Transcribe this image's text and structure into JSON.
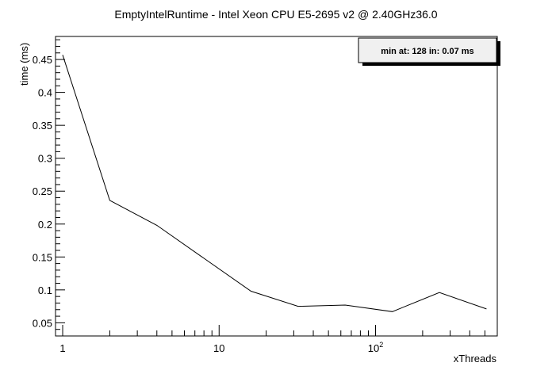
{
  "chart_data": {
    "type": "line",
    "title": "EmptyIntelRuntime - Intel Xeon CPU E5-2695 v2 @ 2.40GHz36.0",
    "xlabel": "xThreads",
    "ylabel": "time (ms)",
    "x_scale": "log",
    "xlim": [
      0.9,
      600
    ],
    "ylim": [
      0.03,
      0.485
    ],
    "x_ticks": [
      {
        "value": 1,
        "label": "1"
      },
      {
        "value": 10,
        "label": "10"
      },
      {
        "value": 100,
        "label": "10",
        "sup": "2"
      }
    ],
    "y_ticks": [
      {
        "value": 0.05,
        "label": "0.05"
      },
      {
        "value": 0.1,
        "label": "0.1"
      },
      {
        "value": 0.15,
        "label": "0.15"
      },
      {
        "value": 0.2,
        "label": "0.2"
      },
      {
        "value": 0.25,
        "label": "0.25"
      },
      {
        "value": 0.3,
        "label": "0.3"
      },
      {
        "value": 0.35,
        "label": "0.35"
      },
      {
        "value": 0.4,
        "label": "0.4"
      },
      {
        "value": 0.45,
        "label": "0.45"
      }
    ],
    "series": [
      {
        "x": [
          1,
          2,
          4,
          8,
          16,
          32,
          64,
          128,
          256,
          512
        ],
        "y": [
          0.457,
          0.236,
          0.198,
          0.148,
          0.098,
          0.075,
          0.077,
          0.067,
          0.096,
          0.071
        ],
        "color": "#000000"
      }
    ],
    "legend": {
      "text": "min at: 128 in: 0.07 ms",
      "placement": "top-right"
    },
    "grid": false
  }
}
